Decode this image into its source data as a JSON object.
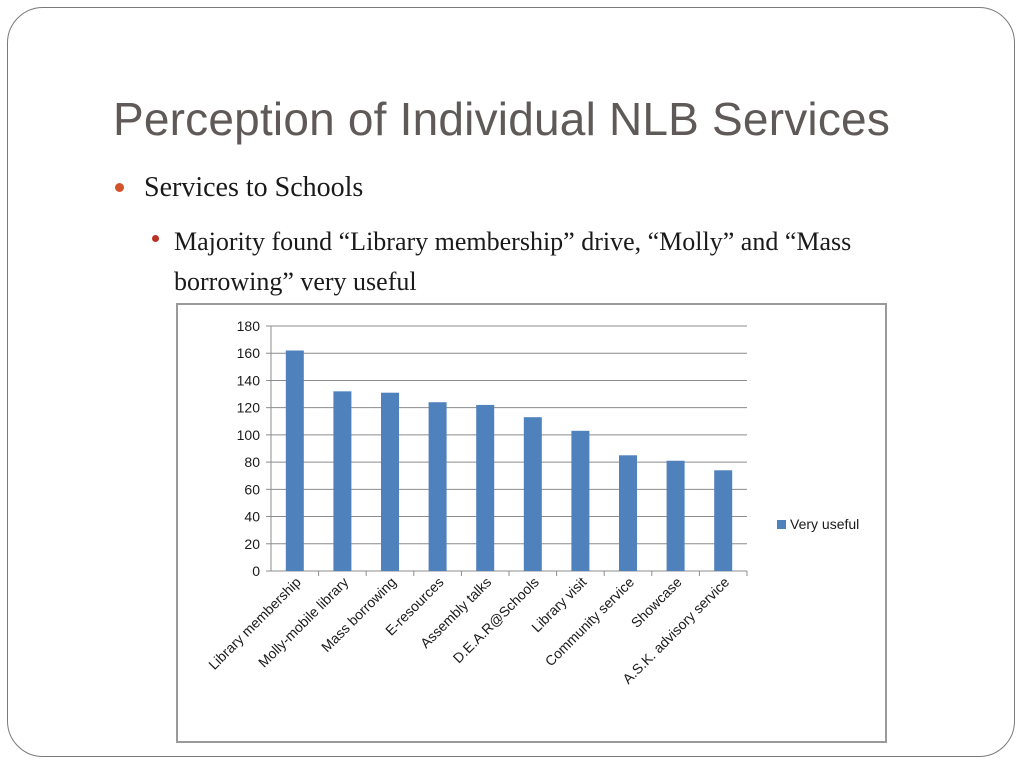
{
  "slide": {
    "title": "Perception of Individual NLB Services",
    "bullet_level1": "Services to Schools",
    "bullet_level2": "Majority found “Library membership” drive, “Molly” and “Mass borrowing” very useful"
  },
  "colors": {
    "bar": "#4f81bd",
    "bullet1": "#d2532a",
    "bullet2": "#b83324",
    "title": "#5f5a58"
  },
  "chart_data": {
    "type": "bar",
    "categories": [
      "Library membership",
      "Molly-mobile library",
      "Mass borrowing",
      "E-resources",
      "Assembly talks",
      "D.E.A.R@Schools",
      "Library visit",
      "Community service",
      "Showcase",
      "A.S.K. advisory service"
    ],
    "series": [
      {
        "name": "Very useful",
        "values": [
          162,
          132,
          131,
          124,
          122,
          113,
          103,
          85,
          81,
          74
        ]
      }
    ],
    "ylim": [
      0,
      180
    ],
    "yticks": [
      0,
      20,
      40,
      60,
      80,
      100,
      120,
      140,
      160,
      180
    ],
    "grid": true,
    "legend": "right",
    "title": "",
    "xlabel": "",
    "ylabel": ""
  }
}
